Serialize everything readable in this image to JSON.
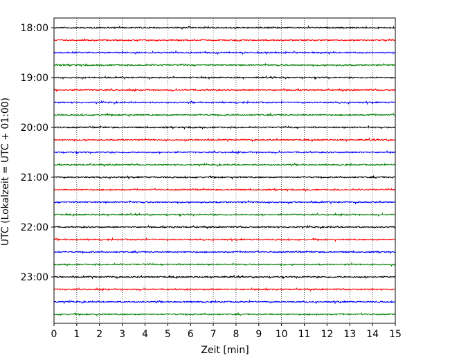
{
  "chart_data": {
    "type": "line",
    "description_kind": "helicorder",
    "xlabel": "Zeit  [min]",
    "ylabel": "UTC (Lokalzeit = UTC + 01:00)",
    "xlim": [
      0,
      15
    ],
    "x_ticks": [
      0,
      1,
      2,
      3,
      4,
      5,
      6,
      7,
      8,
      9,
      10,
      11,
      12,
      13,
      14,
      15
    ],
    "x_grid": true,
    "y_ticks": [
      "18:00",
      "19:00",
      "20:00",
      "21:00",
      "22:00",
      "23:00"
    ],
    "trace_colors": [
      "#000000",
      "#ff0000",
      "#0000ff",
      "#008000"
    ],
    "traces_start": [
      "18:00",
      "18:15",
      "18:30",
      "18:45",
      "19:00",
      "19:15",
      "19:30",
      "19:45",
      "20:00",
      "20:15",
      "20:30",
      "20:45",
      "21:00",
      "21:15",
      "21:30",
      "21:45",
      "22:00",
      "22:15",
      "22:30",
      "22:45",
      "23:00",
      "23:15",
      "23:30",
      "23:45"
    ]
  }
}
